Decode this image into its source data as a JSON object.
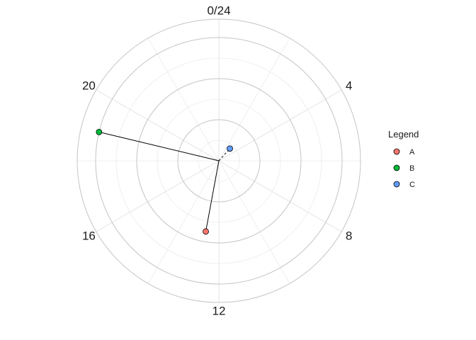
{
  "chart_data": {
    "type": "polar-scatter",
    "coord": "polar",
    "theta_axis": {
      "unit": "hour",
      "range": [
        0,
        24
      ],
      "tick_labels": [
        {
          "hour": 0,
          "label": "0/24"
        },
        {
          "hour": 4,
          "label": "4"
        },
        {
          "hour": 8,
          "label": "8"
        },
        {
          "hour": 12,
          "label": "12"
        },
        {
          "hour": 16,
          "label": "16"
        },
        {
          "hour": 20,
          "label": "20"
        }
      ],
      "minor_gridline_hours": [
        2,
        6,
        10,
        14,
        18,
        22
      ]
    },
    "radial_axis": {
      "range": [
        0,
        3
      ],
      "major_gridlines": [
        1,
        2,
        3
      ],
      "minor_gridlines": [
        0.5,
        1.5,
        2.5
      ]
    },
    "grid": true,
    "legend": {
      "title": "Legend",
      "placement": "right",
      "entries": [
        {
          "label": "A",
          "color": "#F8766D"
        },
        {
          "label": "B",
          "color": "#00BA38"
        },
        {
          "label": "C",
          "color": "#619CFF"
        }
      ]
    },
    "points": [
      {
        "series": "A",
        "hour": 12.7,
        "r": 1.75,
        "segment": "solid"
      },
      {
        "series": "B",
        "hour": 18.9,
        "r": 3.0,
        "segment": "solid"
      },
      {
        "series": "C",
        "hour": 2.8,
        "r": 0.4,
        "segment": "dashed"
      }
    ]
  }
}
